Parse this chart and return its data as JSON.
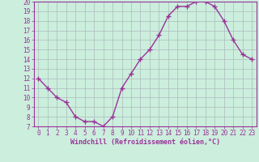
{
  "x": [
    0,
    1,
    2,
    3,
    4,
    5,
    6,
    7,
    8,
    9,
    10,
    11,
    12,
    13,
    14,
    15,
    16,
    17,
    18,
    19,
    20,
    21,
    22,
    23
  ],
  "y": [
    12,
    11,
    10,
    9.5,
    8,
    7.5,
    7.5,
    7,
    8,
    11,
    12.5,
    14,
    15,
    16.5,
    18.5,
    19.5,
    19.5,
    20,
    20,
    19.5,
    18,
    16,
    14.5,
    14
  ],
  "line_color": "#993399",
  "marker": "+",
  "marker_size": 4,
  "marker_lw": 1.0,
  "line_width": 1.0,
  "bg_color": "#cceedd",
  "grid_color": "#aabbbb",
  "xlabel": "Windchill (Refroidissement éolien,°C)",
  "xlabel_color": "#993399",
  "xlim": [
    -0.5,
    23.5
  ],
  "ylim": [
    7,
    20
  ],
  "yticks": [
    7,
    8,
    9,
    10,
    11,
    12,
    13,
    14,
    15,
    16,
    17,
    18,
    19,
    20
  ],
  "xticks": [
    0,
    1,
    2,
    3,
    4,
    5,
    6,
    7,
    8,
    9,
    10,
    11,
    12,
    13,
    14,
    15,
    16,
    17,
    18,
    19,
    20,
    21,
    22,
    23
  ],
  "tick_color": "#993399",
  "spine_color": "#993399",
  "font_size": 5.5,
  "xlabel_fontsize": 6.0
}
